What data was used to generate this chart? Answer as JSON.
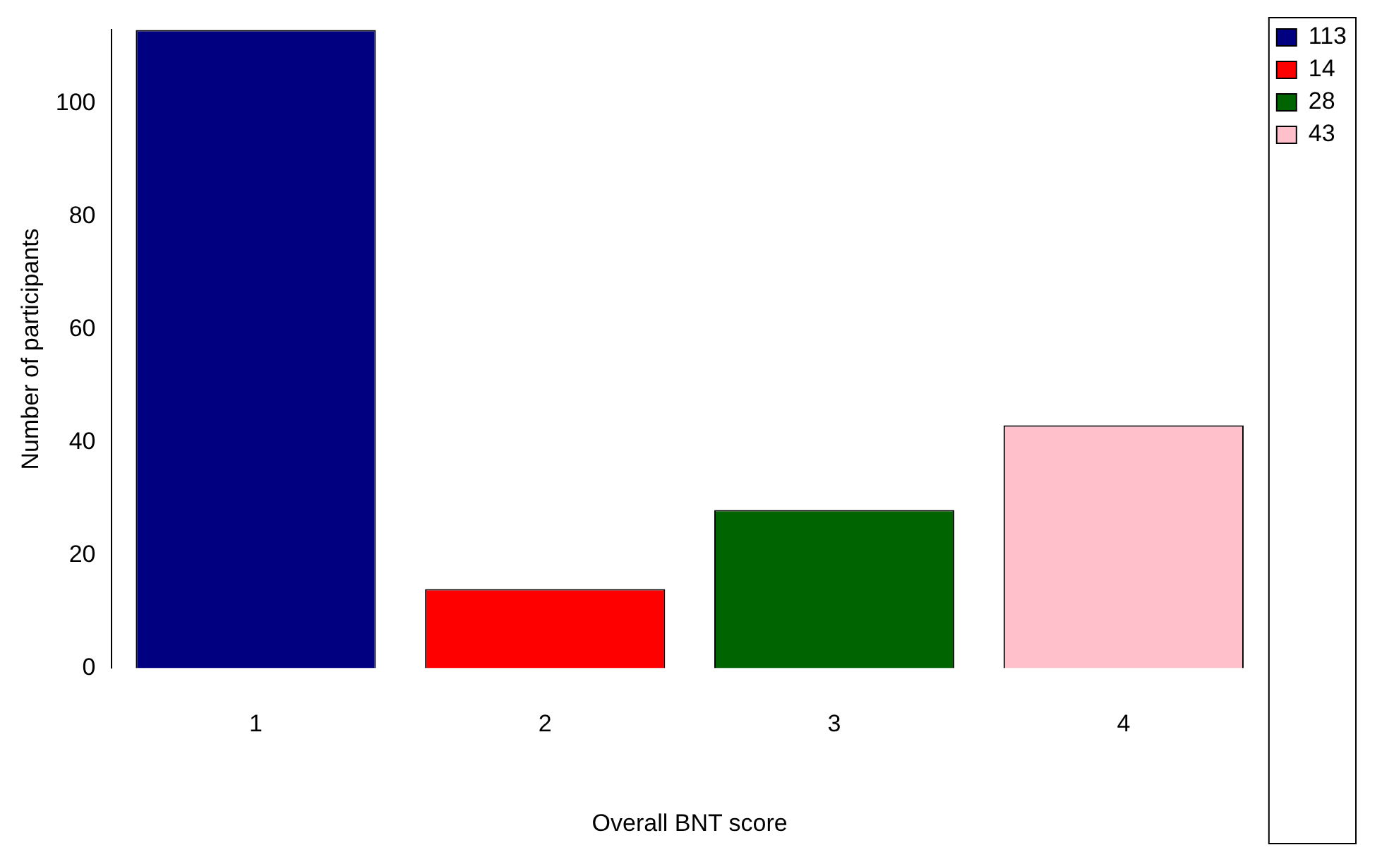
{
  "chart_data": {
    "type": "bar",
    "xlabel": "Overall BNT score",
    "ylabel": "Number of participants",
    "categories": [
      "1",
      "2",
      "3",
      "4"
    ],
    "series": [
      {
        "name": "113",
        "color": "#000080",
        "values": [
          113,
          null,
          null,
          null
        ]
      },
      {
        "name": "14",
        "color": "#ff0000",
        "values": [
          null,
          14,
          null,
          null
        ]
      },
      {
        "name": "28",
        "color": "#006400",
        "values": [
          null,
          null,
          28,
          null
        ]
      },
      {
        "name": "43",
        "color": "#ffc0cb",
        "values": [
          null,
          null,
          null,
          43
        ]
      }
    ],
    "ylim": [
      0,
      113
    ],
    "yticks": [
      0,
      20,
      40,
      60,
      80,
      100
    ],
    "grid": false,
    "legend": "top right"
  }
}
